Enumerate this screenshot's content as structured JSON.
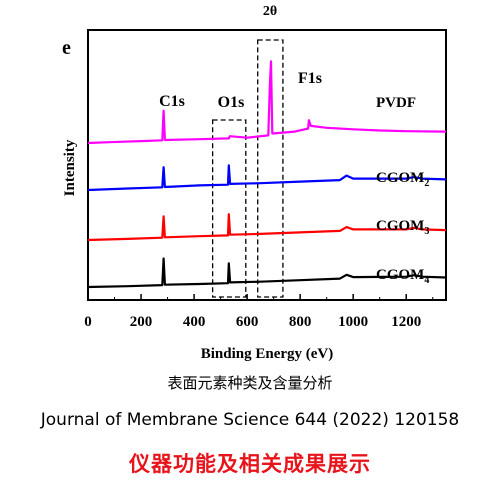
{
  "chart_data": {
    "type": "line",
    "panel_label": "e",
    "top_label": "2θ",
    "xlabel": "Binding Energy (eV)",
    "ylabel": "Intensity",
    "xlim": [
      0,
      1350
    ],
    "x_ticks": [
      0,
      200,
      400,
      600,
      800,
      1000,
      1200
    ],
    "grid": false,
    "legend": "inline labels at right of each trace",
    "peak_labels": [
      {
        "text": "C1s",
        "x": 285
      },
      {
        "text": "O1s",
        "x": 531
      },
      {
        "text": "F1s",
        "x": 688
      }
    ],
    "highlight_boxes": [
      {
        "name": "O1s region",
        "x_range": [
          470,
          595
        ]
      },
      {
        "name": "F1s region",
        "x_range": [
          640,
          735
        ]
      }
    ],
    "series": [
      {
        "name": "PVDF",
        "name_sub": "",
        "color": "#ff00ff",
        "offset": 3,
        "points": [
          [
            0,
            0.0
          ],
          [
            80,
            0.02
          ],
          [
            200,
            0.05
          ],
          [
            280,
            0.07
          ],
          [
            285,
            0.85
          ],
          [
            290,
            0.08
          ],
          [
            420,
            0.1
          ],
          [
            531,
            0.12
          ],
          [
            535,
            0.18
          ],
          [
            600,
            0.14
          ],
          [
            680,
            0.2
          ],
          [
            686,
            1.55
          ],
          [
            690,
            2.15
          ],
          [
            695,
            0.25
          ],
          [
            780,
            0.3
          ],
          [
            830,
            0.38
          ],
          [
            833,
            0.6
          ],
          [
            840,
            0.45
          ],
          [
            900,
            0.4
          ],
          [
            1000,
            0.36
          ],
          [
            1100,
            0.33
          ],
          [
            1200,
            0.31
          ],
          [
            1350,
            0.3
          ]
        ]
      },
      {
        "name": "CGOM",
        "name_sub": "2",
        "color": "#0000ff",
        "offset": 2,
        "points": [
          [
            0,
            0.0
          ],
          [
            150,
            0.04
          ],
          [
            280,
            0.07
          ],
          [
            285,
            0.6
          ],
          [
            290,
            0.08
          ],
          [
            420,
            0.12
          ],
          [
            528,
            0.14
          ],
          [
            531,
            0.65
          ],
          [
            536,
            0.16
          ],
          [
            650,
            0.18
          ],
          [
            800,
            0.22
          ],
          [
            950,
            0.26
          ],
          [
            975,
            0.38
          ],
          [
            1000,
            0.3
          ],
          [
            1200,
            0.3
          ],
          [
            1230,
            0.34
          ],
          [
            1260,
            0.3
          ],
          [
            1350,
            0.28
          ]
        ]
      },
      {
        "name": "CGOM",
        "name_sub": "3",
        "color": "#ff0000",
        "offset": 1,
        "points": [
          [
            0,
            0.0
          ],
          [
            150,
            0.03
          ],
          [
            280,
            0.06
          ],
          [
            285,
            0.62
          ],
          [
            290,
            0.07
          ],
          [
            420,
            0.1
          ],
          [
            528,
            0.12
          ],
          [
            531,
            0.68
          ],
          [
            536,
            0.14
          ],
          [
            650,
            0.16
          ],
          [
            800,
            0.2
          ],
          [
            950,
            0.24
          ],
          [
            975,
            0.34
          ],
          [
            1000,
            0.28
          ],
          [
            1200,
            0.28
          ],
          [
            1230,
            0.32
          ],
          [
            1260,
            0.28
          ],
          [
            1350,
            0.26
          ]
        ]
      },
      {
        "name": "CGOM",
        "name_sub": "4",
        "color": "#000000",
        "offset": 0,
        "points": [
          [
            0,
            0.0
          ],
          [
            150,
            0.02
          ],
          [
            280,
            0.05
          ],
          [
            285,
            0.75
          ],
          [
            290,
            0.06
          ],
          [
            420,
            0.08
          ],
          [
            528,
            0.1
          ],
          [
            531,
            0.62
          ],
          [
            536,
            0.12
          ],
          [
            650,
            0.14
          ],
          [
            800,
            0.18
          ],
          [
            950,
            0.22
          ],
          [
            975,
            0.32
          ],
          [
            1000,
            0.26
          ],
          [
            1200,
            0.27
          ],
          [
            1230,
            0.31
          ],
          [
            1260,
            0.27
          ],
          [
            1350,
            0.25
          ]
        ]
      }
    ]
  },
  "captions": {
    "line1": "表面元素种类及含量分析",
    "line2": "Journal of Membrane Science 644 (2022) 120158",
    "line3": "仪器功能及相关成果展示"
  }
}
